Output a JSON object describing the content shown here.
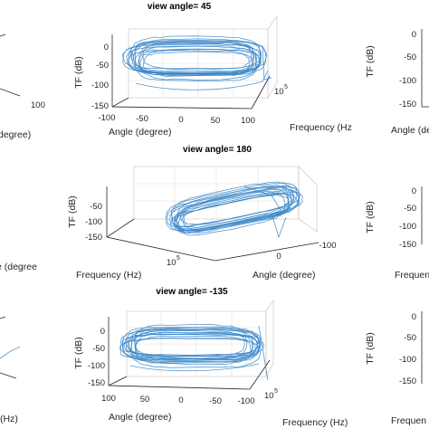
{
  "chart_data": [
    {
      "type": "line",
      "title": "view angle= 45",
      "zlabel": "TF (dB)",
      "xlabel": "Angle (degree)",
      "ylabel": "Frequency (Hz",
      "x_ticks": [
        "-100",
        "-50",
        "0",
        "50",
        "100"
      ],
      "z_ticks": [
        "0",
        "-50",
        "-100",
        "-150"
      ],
      "y_tick": "10",
      "y_tick_exp": "5",
      "zlim": [
        -150,
        0
      ]
    },
    {
      "type": "line",
      "title": "view angle= 180",
      "zlabel": "TF (dB)",
      "xlabel": "Angle (degree)",
      "ylabel": "Frequency (Hz)",
      "x_ticks": [
        "0",
        "-100"
      ],
      "z_ticks": [
        "-50",
        "-100",
        "-150"
      ],
      "y_tick": "10",
      "y_tick_exp": "5",
      "zlim": [
        -150,
        0
      ]
    },
    {
      "type": "line",
      "title": "view angle= -135",
      "zlabel": "TF (dB)",
      "xlabel": "Angle (degree)",
      "ylabel": "Frequency (Hz)",
      "x_ticks": [
        "100",
        "50",
        "0",
        "-50",
        "-100"
      ],
      "z_ticks": [
        "0",
        "-50",
        "-100",
        "-150"
      ],
      "y_tick": "10",
      "y_tick_exp": "5",
      "zlim": [
        -150,
        0
      ]
    }
  ],
  "side_fragments": {
    "left_top_tick": "100",
    "left_top_label": "degree)",
    "left_mid_label": "e (degree",
    "left_bottom_label": "(Hz)",
    "right_top_label": "TF (dB)",
    "right_top_ticks": [
      "0",
      "-50",
      "-100",
      "-150"
    ],
    "right_top_xlabel": "Angle (deg",
    "right_mid_label": "TF (dB)",
    "right_mid_ticks": [
      "0",
      "-50",
      "-100",
      "-150"
    ],
    "right_mid_xlabel": "Frequen",
    "right_bottom_label": "TF (dB)",
    "right_bottom_ticks": [
      "0",
      "-50",
      "-100",
      "-150"
    ],
    "right_bottom_xlabel": "Frequen"
  }
}
